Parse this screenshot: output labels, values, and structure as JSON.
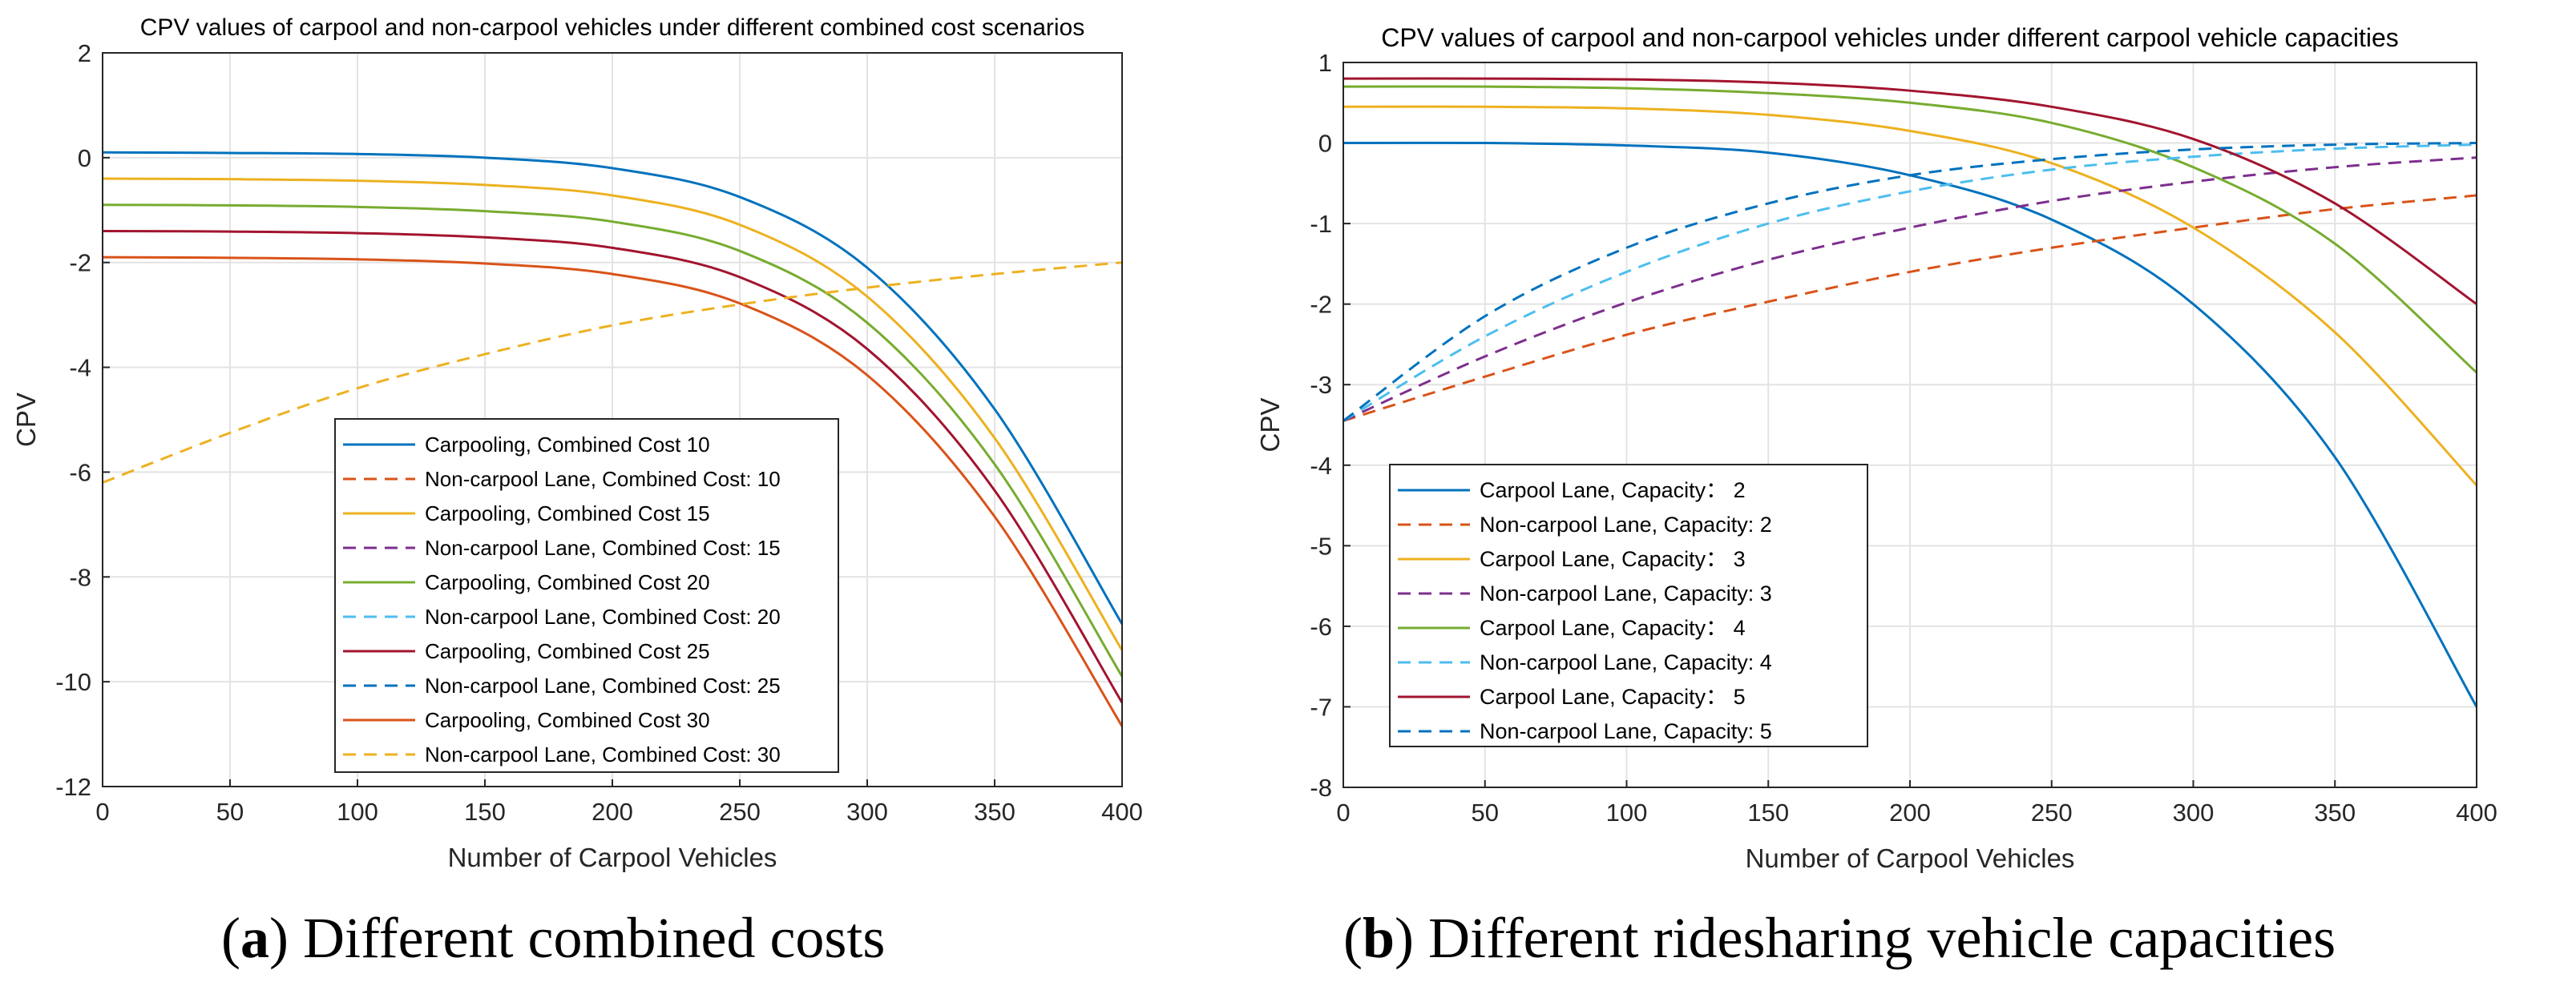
{
  "chart_data": [
    {
      "type": "line",
      "panel_letter": "a",
      "caption": "Different combined costs",
      "title": "CPV values of carpool and non-carpool vehicles under different combined cost scenarios",
      "xlabel": "Number of Carpool Vehicles",
      "ylabel": "CPV",
      "xlim": [
        0,
        400
      ],
      "ylim": [
        -12,
        2
      ],
      "xticks": [
        0,
        50,
        100,
        150,
        200,
        250,
        300,
        350,
        400
      ],
      "yticks": [
        2,
        0,
        -2,
        -4,
        -6,
        -8,
        -10,
        -12
      ],
      "grid": true,
      "legend_position": "lower-center",
      "series": [
        {
          "name": "Carpooling, Combined Cost 10",
          "style": "solid",
          "color": "#0072bd",
          "x": [
            0,
            50,
            100,
            150,
            200,
            250,
            300,
            350,
            400
          ],
          "values": [
            0.1,
            0.09,
            0.07,
            0.0,
            -0.2,
            -0.75,
            -2.1,
            -4.8,
            -8.9
          ]
        },
        {
          "name": "Non-carpool Lane, Combined Cost: 10",
          "style": "dashed",
          "color": "#d95319",
          "x": [],
          "values": []
        },
        {
          "name": "Carpooling, Combined Cost 15",
          "style": "solid",
          "color": "#edb120",
          "x": [
            0,
            50,
            100,
            150,
            200,
            250,
            300,
            350,
            400
          ],
          "values": [
            -0.4,
            -0.41,
            -0.44,
            -0.52,
            -0.72,
            -1.28,
            -2.65,
            -5.35,
            -9.4
          ]
        },
        {
          "name": "Non-carpool Lane, Combined Cost: 15",
          "style": "dashed",
          "color": "#7e2f8e",
          "x": [],
          "values": []
        },
        {
          "name": "Carpooling, Combined Cost 20",
          "style": "solid",
          "color": "#77ac30",
          "x": [
            0,
            50,
            100,
            150,
            200,
            250,
            300,
            350,
            400
          ],
          "values": [
            -0.9,
            -0.91,
            -0.94,
            -1.02,
            -1.22,
            -1.78,
            -3.15,
            -5.85,
            -9.9
          ]
        },
        {
          "name": "Non-carpool Lane, Combined Cost: 20",
          "style": "dashed",
          "color": "#4dbeee",
          "x": [],
          "values": []
        },
        {
          "name": "Carpooling, Combined Cost 25",
          "style": "solid",
          "color": "#a2142f",
          "x": [
            0,
            50,
            100,
            150,
            200,
            250,
            300,
            350,
            400
          ],
          "values": [
            -1.4,
            -1.41,
            -1.44,
            -1.52,
            -1.72,
            -2.28,
            -3.65,
            -6.35,
            -10.4
          ]
        },
        {
          "name": "Non-carpool Lane, Combined Cost: 25",
          "style": "dashed",
          "color": "#0072bd",
          "x": [],
          "values": []
        },
        {
          "name": "Carpooling, Combined Cost 30",
          "style": "solid",
          "color": "#d95319",
          "x": [
            0,
            50,
            100,
            150,
            200,
            250,
            300,
            350,
            400
          ],
          "values": [
            -1.9,
            -1.91,
            -1.94,
            -2.02,
            -2.22,
            -2.78,
            -4.15,
            -6.85,
            -10.85
          ]
        },
        {
          "name": "Non-carpool Lane, Combined Cost: 30",
          "style": "dashed",
          "color": "#edb120",
          "x": [
            0,
            50,
            100,
            150,
            200,
            250,
            300,
            350,
            400
          ],
          "values": [
            -6.2,
            -5.25,
            -4.4,
            -3.75,
            -3.2,
            -2.8,
            -2.48,
            -2.22,
            -2.0
          ]
        }
      ]
    },
    {
      "type": "line",
      "panel_letter": "b",
      "caption": "Different ridesharing vehicle capacities",
      "title": "CPV values of carpool and non-carpool vehicles under different carpool vehicle capacities",
      "xlabel": "Number of Carpool Vehicles",
      "ylabel": "CPV",
      "xlim": [
        0,
        400
      ],
      "ylim": [
        -8,
        1
      ],
      "xticks": [
        0,
        50,
        100,
        150,
        200,
        250,
        300,
        350,
        400
      ],
      "yticks": [
        1,
        0,
        -1,
        -2,
        -3,
        -4,
        -5,
        -6,
        -7,
        -8
      ],
      "grid": true,
      "legend_position": "lower-left",
      "series": [
        {
          "name": "Carpool Lane, Capacity： 2",
          "style": "solid",
          "color": "#0072bd",
          "x": [
            0,
            50,
            100,
            150,
            200,
            250,
            300,
            350,
            400
          ],
          "values": [
            0.0,
            0.0,
            -0.03,
            -0.12,
            -0.4,
            -0.95,
            -2.0,
            -3.9,
            -7.0
          ]
        },
        {
          "name": "Non-carpool Lane, Capacity: 2",
          "style": "dashed",
          "color": "#d95319",
          "x": [
            0,
            50,
            100,
            150,
            200,
            250,
            300,
            350,
            400
          ],
          "values": [
            -3.45,
            -2.9,
            -2.38,
            -1.97,
            -1.6,
            -1.3,
            -1.05,
            -0.82,
            -0.65
          ]
        },
        {
          "name": "Carpool Lane, Capacity： 3",
          "style": "solid",
          "color": "#edb120",
          "x": [
            0,
            50,
            100,
            150,
            200,
            250,
            300,
            350,
            400
          ],
          "values": [
            0.45,
            0.45,
            0.43,
            0.35,
            0.15,
            -0.25,
            -1.05,
            -2.35,
            -4.25
          ]
        },
        {
          "name": "Non-carpool Lane, Capacity: 3",
          "style": "dashed",
          "color": "#7e2f8e",
          "x": [
            0,
            50,
            100,
            150,
            200,
            250,
            300,
            350,
            400
          ],
          "values": [
            -3.45,
            -2.65,
            -1.98,
            -1.45,
            -1.05,
            -0.72,
            -0.48,
            -0.3,
            -0.18
          ]
        },
        {
          "name": "Carpool Lane, Capacity： 4",
          "style": "solid",
          "color": "#77ac30",
          "x": [
            0,
            50,
            100,
            150,
            200,
            250,
            300,
            350,
            400
          ],
          "values": [
            0.7,
            0.7,
            0.68,
            0.62,
            0.5,
            0.25,
            -0.3,
            -1.25,
            -2.85
          ]
        },
        {
          "name": "Non-carpool Lane, Capacity: 4",
          "style": "dashed",
          "color": "#4dbeee",
          "x": [
            0,
            50,
            100,
            150,
            200,
            250,
            300,
            350,
            400
          ],
          "values": [
            -3.45,
            -2.4,
            -1.6,
            -1.0,
            -0.6,
            -0.33,
            -0.17,
            -0.07,
            -0.02
          ]
        },
        {
          "name": "Carpool Lane, Capacity： 5",
          "style": "solid",
          "color": "#a2142f",
          "x": [
            0,
            50,
            100,
            150,
            200,
            250,
            300,
            350,
            400
          ],
          "values": [
            0.8,
            0.8,
            0.79,
            0.75,
            0.65,
            0.45,
            0.05,
            -0.75,
            -2.0
          ]
        },
        {
          "name": "Non-carpool Lane, Capacity: 5",
          "style": "dashed",
          "color": "#0072bd",
          "x": [
            0,
            50,
            100,
            150,
            200,
            250,
            300,
            350,
            400
          ],
          "values": [
            -3.45,
            -2.15,
            -1.3,
            -0.75,
            -0.4,
            -0.2,
            -0.08,
            -0.02,
            0.0
          ]
        }
      ]
    }
  ]
}
